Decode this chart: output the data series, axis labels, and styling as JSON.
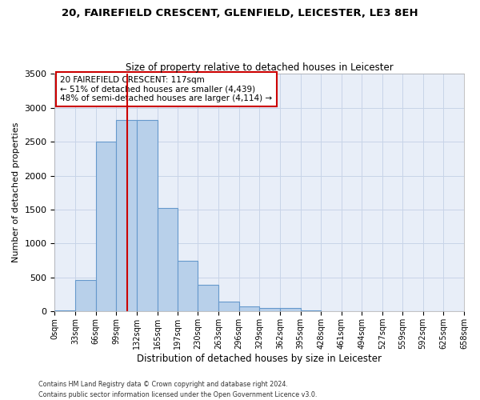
{
  "title1": "20, FAIREFIELD CRESCENT, GLENFIELD, LEICESTER, LE3 8EH",
  "title2": "Size of property relative to detached houses in Leicester",
  "xlabel": "Distribution of detached houses by size in Leicester",
  "ylabel": "Number of detached properties",
  "footnote1": "Contains HM Land Registry data © Crown copyright and database right 2024.",
  "footnote2": "Contains public sector information licensed under the Open Government Licence v3.0.",
  "bar_edges": [
    0,
    33,
    66,
    99,
    132,
    165,
    197,
    230,
    263,
    296,
    329,
    362,
    395,
    428,
    461,
    494,
    527,
    559,
    592,
    625,
    658
  ],
  "bar_heights": [
    20,
    460,
    2500,
    2820,
    2820,
    1520,
    750,
    390,
    140,
    80,
    55,
    55,
    15,
    5,
    0,
    0,
    0,
    0,
    0,
    0
  ],
  "bar_color": "#b8d0ea",
  "bar_edge_color": "#6699cc",
  "grid_color": "#c8d4e8",
  "background_color": "#e8eef8",
  "property_size": 117,
  "red_line_color": "#cc0000",
  "annotation_text": "20 FAIREFIELD CRESCENT: 117sqm\n← 51% of detached houses are smaller (4,439)\n48% of semi-detached houses are larger (4,114) →",
  "annotation_box_color": "#cc0000",
  "ylim": [
    0,
    3500
  ],
  "yticks": [
    0,
    500,
    1000,
    1500,
    2000,
    2500,
    3000,
    3500
  ],
  "tick_labels": [
    "0sqm",
    "33sqm",
    "66sqm",
    "99sqm",
    "132sqm",
    "165sqm",
    "197sqm",
    "230sqm",
    "263sqm",
    "296sqm",
    "329sqm",
    "362sqm",
    "395sqm",
    "428sqm",
    "461sqm",
    "494sqm",
    "527sqm",
    "559sqm",
    "592sqm",
    "625sqm",
    "658sqm"
  ]
}
